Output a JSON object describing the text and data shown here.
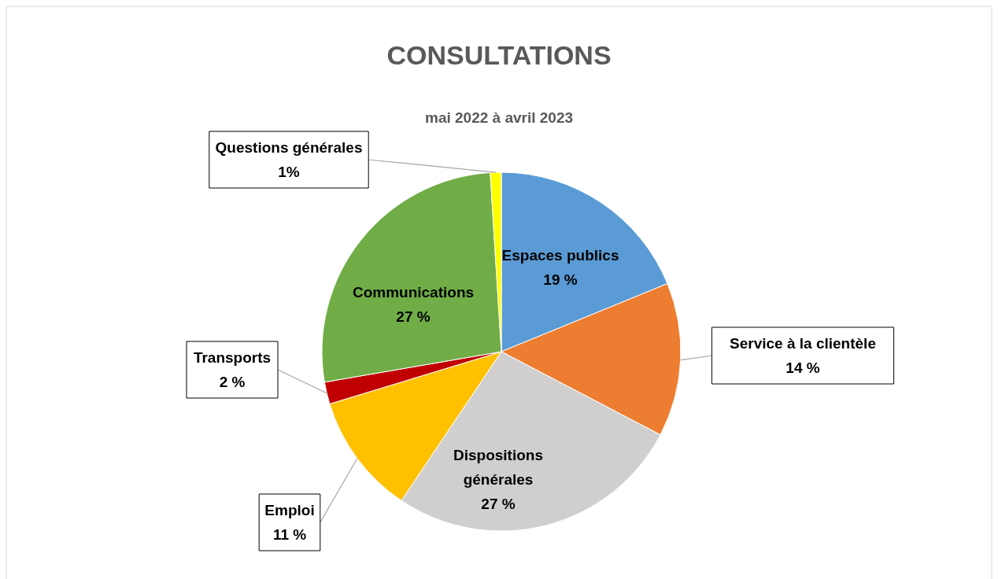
{
  "chart_data": {
    "type": "pie",
    "title": "CONSULTATIONS",
    "subtitle": "mai 2022 à avril 2023",
    "categories": [
      "Espaces publics",
      "Service à la clientèle",
      "Dispositions générales",
      "Emploi",
      "Transports",
      "Communications",
      "Questions générales"
    ],
    "values": [
      19,
      14,
      27,
      11,
      2,
      27,
      1
    ],
    "value_labels": [
      "19 %",
      "14 %",
      "27 %",
      "11 %",
      "2 %",
      "27 %",
      "1%"
    ],
    "colors": [
      "#5b9bd5",
      "#ed7d31",
      "#d0cece",
      "#ffc000",
      "#c00000",
      "#70ad47",
      "#ffff00"
    ]
  }
}
